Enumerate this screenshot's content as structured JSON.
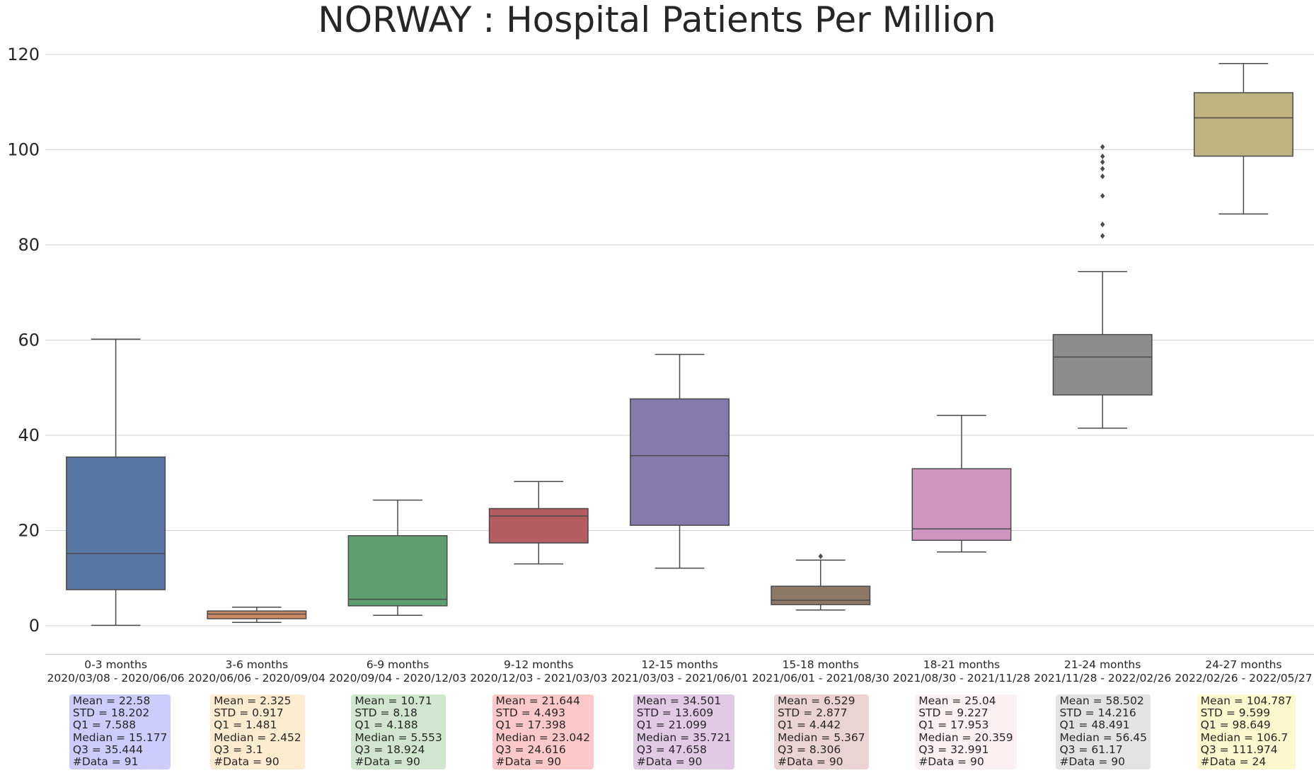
{
  "chart_data": {
    "type": "box",
    "title": "NORWAY : Hospital Patients Per Million",
    "xlabel": "",
    "ylabel": "",
    "ylim": [
      -6,
      124
    ],
    "yticks": [
      0,
      20,
      40,
      60,
      80,
      100,
      120
    ],
    "grid": "horizontal",
    "categories": [
      {
        "label": "0-3 months",
        "range": "2020/03/08 - 2020/06/06"
      },
      {
        "label": "3-6 months",
        "range": "2020/06/06 - 2020/09/04"
      },
      {
        "label": "6-9 months",
        "range": "2020/09/04 - 2020/12/03"
      },
      {
        "label": "9-12 months",
        "range": "2020/12/03 - 2021/03/03"
      },
      {
        "label": "12-15 months",
        "range": "2021/03/03 - 2021/06/01"
      },
      {
        "label": "15-18 months",
        "range": "2021/06/01 - 2021/08/30"
      },
      {
        "label": "18-21 months",
        "range": "2021/08/30 - 2021/11/28"
      },
      {
        "label": "21-24 months",
        "range": "2021/11/28 - 2022/02/26"
      },
      {
        "label": "24-27 months",
        "range": "2022/02/26 - 2022/05/27"
      }
    ],
    "boxes": [
      {
        "whisker_low": 0.1,
        "q1": 7.588,
        "median": 15.177,
        "q3": 35.444,
        "whisker_high": 60.2,
        "outliers": [],
        "color": "#5975a4"
      },
      {
        "whisker_low": 0.7,
        "q1": 1.481,
        "median": 2.452,
        "q3": 3.1,
        "whisker_high": 3.9,
        "outliers": [],
        "color": "#cc8963"
      },
      {
        "whisker_low": 2.2,
        "q1": 4.188,
        "median": 5.553,
        "q3": 18.924,
        "whisker_high": 26.4,
        "outliers": [],
        "color": "#5f9e6e"
      },
      {
        "whisker_low": 13.0,
        "q1": 17.398,
        "median": 23.042,
        "q3": 24.616,
        "whisker_high": 30.3,
        "outliers": [],
        "color": "#b55d60"
      },
      {
        "whisker_low": 12.1,
        "q1": 21.099,
        "median": 35.721,
        "q3": 47.658,
        "whisker_high": 57.0,
        "outliers": [],
        "color": "#857aab"
      },
      {
        "whisker_low": 3.3,
        "q1": 4.442,
        "median": 5.367,
        "q3": 8.306,
        "whisker_high": 13.8,
        "outliers": [
          14.6
        ],
        "color": "#8d7866"
      },
      {
        "whisker_low": 15.5,
        "q1": 17.953,
        "median": 20.359,
        "q3": 32.991,
        "whisker_high": 44.2,
        "outliers": [],
        "color": "#d095bf"
      },
      {
        "whisker_low": 41.5,
        "q1": 48.491,
        "median": 56.45,
        "q3": 61.17,
        "whisker_high": 74.4,
        "outliers": [
          81.9,
          84.3,
          90.3,
          94.4,
          96.0,
          97.4,
          98.6,
          100.6
        ],
        "color": "#8c8c8c"
      },
      {
        "whisker_low": 86.5,
        "q1": 98.649,
        "median": 106.7,
        "q3": 111.974,
        "whisker_high": 118.1,
        "outliers": [],
        "color": "#c1b37f"
      }
    ],
    "stats": [
      {
        "mean": "Mean = 22.58",
        "std": "STD = 18.202",
        "q1": "Q1 = 7.588",
        "median": "Median = 15.177",
        "q3": "Q3 = 35.444",
        "count": "#Data = 91",
        "bg": "#cccdfd"
      },
      {
        "mean": "Mean = 2.325",
        "std": "STD = 0.917",
        "q1": "Q1 = 1.481",
        "median": "Median = 2.452",
        "q3": "Q3 = 3.1",
        "count": "#Data = 90",
        "bg": "#fdebd0"
      },
      {
        "mean": "Mean = 10.71",
        "std": "STD = 8.18",
        "q1": "Q1 = 4.188",
        "median": "Median = 5.553",
        "q3": "Q3 = 18.924",
        "count": "#Data = 90",
        "bg": "#d0e6ce"
      },
      {
        "mean": "Mean = 21.644",
        "std": "STD = 4.493",
        "q1": "Q1 = 17.398",
        "median": "Median = 23.042",
        "q3": "Q3 = 24.616",
        "count": "#Data = 90",
        "bg": "#fdc8c8"
      },
      {
        "mean": "Mean = 34.501",
        "std": "STD = 13.609",
        "q1": "Q1 = 21.099",
        "median": "Median = 35.721",
        "q3": "Q3 = 47.658",
        "count": "#Data = 90",
        "bg": "#e1cae4"
      },
      {
        "mean": "Mean = 6.529",
        "std": "STD = 2.877",
        "q1": "Q1 = 4.442",
        "median": "Median = 5.367",
        "q3": "Q3 = 8.306",
        "count": "#Data = 90",
        "bg": "#ebd3d3"
      },
      {
        "mean": "Mean = 25.04",
        "std": "STD = 9.227",
        "q1": "Q1 = 17.953",
        "median": "Median = 20.359",
        "q3": "Q3 = 32.991",
        "count": "#Data = 90",
        "bg": "#fdf0f3"
      },
      {
        "mean": "Mean = 58.502",
        "std": "STD = 14.216",
        "q1": "Q1 = 48.491",
        "median": "Median = 56.45",
        "q3": "Q3 = 61.17",
        "count": "#Data = 90",
        "bg": "#e3e3e3"
      },
      {
        "mean": "Mean = 104.787",
        "std": "STD = 9.599",
        "q1": "Q1 = 98.649",
        "median": "Median = 106.7",
        "q3": "Q3 = 111.974",
        "count": "#Data = 24",
        "bg": "#fdf7cd"
      }
    ]
  }
}
